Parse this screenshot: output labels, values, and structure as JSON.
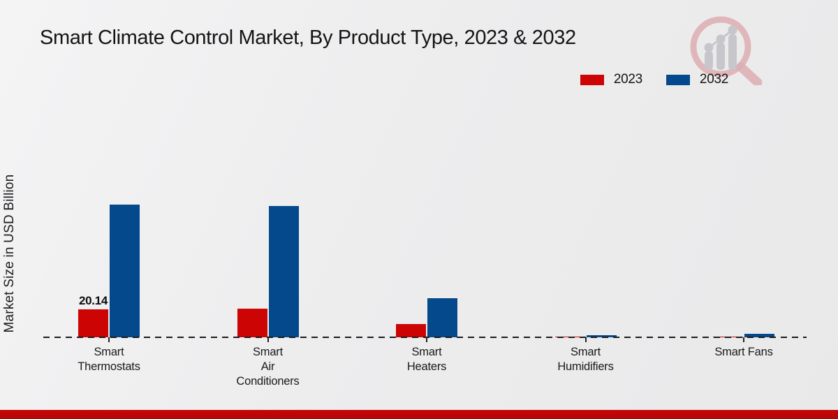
{
  "page": {
    "footer_color": "#b50505",
    "background": "#ededee",
    "watermark_icon": "magnifier-bar-chart-logo"
  },
  "legend": {
    "items": [
      {
        "label": "2023",
        "color": "#cc0404"
      },
      {
        "label": "2032",
        "color": "#04498c"
      }
    ]
  },
  "chart_data": {
    "type": "bar",
    "title": "Smart Climate Control Market, By Product Type, 2023 & 2032",
    "xlabel": "",
    "ylabel": "Market Size in USD Billion",
    "categories": [
      "Smart Thermostats",
      "Smart Air Conditioners",
      "Smart Heaters",
      "Smart Humidifiers",
      "Smart Fans"
    ],
    "category_label_lines": [
      [
        "Smart",
        "Thermostats"
      ],
      [
        "Smart",
        "Air",
        "Conditioners"
      ],
      [
        "Smart",
        "Heaters"
      ],
      [
        "Smart",
        "Humidifiers"
      ],
      [
        "Smart Fans"
      ]
    ],
    "series": [
      {
        "name": "2023",
        "color": "#cc0404",
        "values": [
          20.14,
          20.6,
          9.8,
          1.0,
          1.05
        ]
      },
      {
        "name": "2032",
        "color": "#04498c",
        "values": [
          93.8,
          92.8,
          28.0,
          2.1,
          2.9
        ]
      }
    ],
    "data_labels": [
      {
        "series": "2023",
        "category_index": 0,
        "text": "20.14"
      }
    ],
    "ylim": [
      0,
      100
    ],
    "grid": false,
    "legend_position": "top-right",
    "baseline_style": "dashed-zero-line"
  }
}
